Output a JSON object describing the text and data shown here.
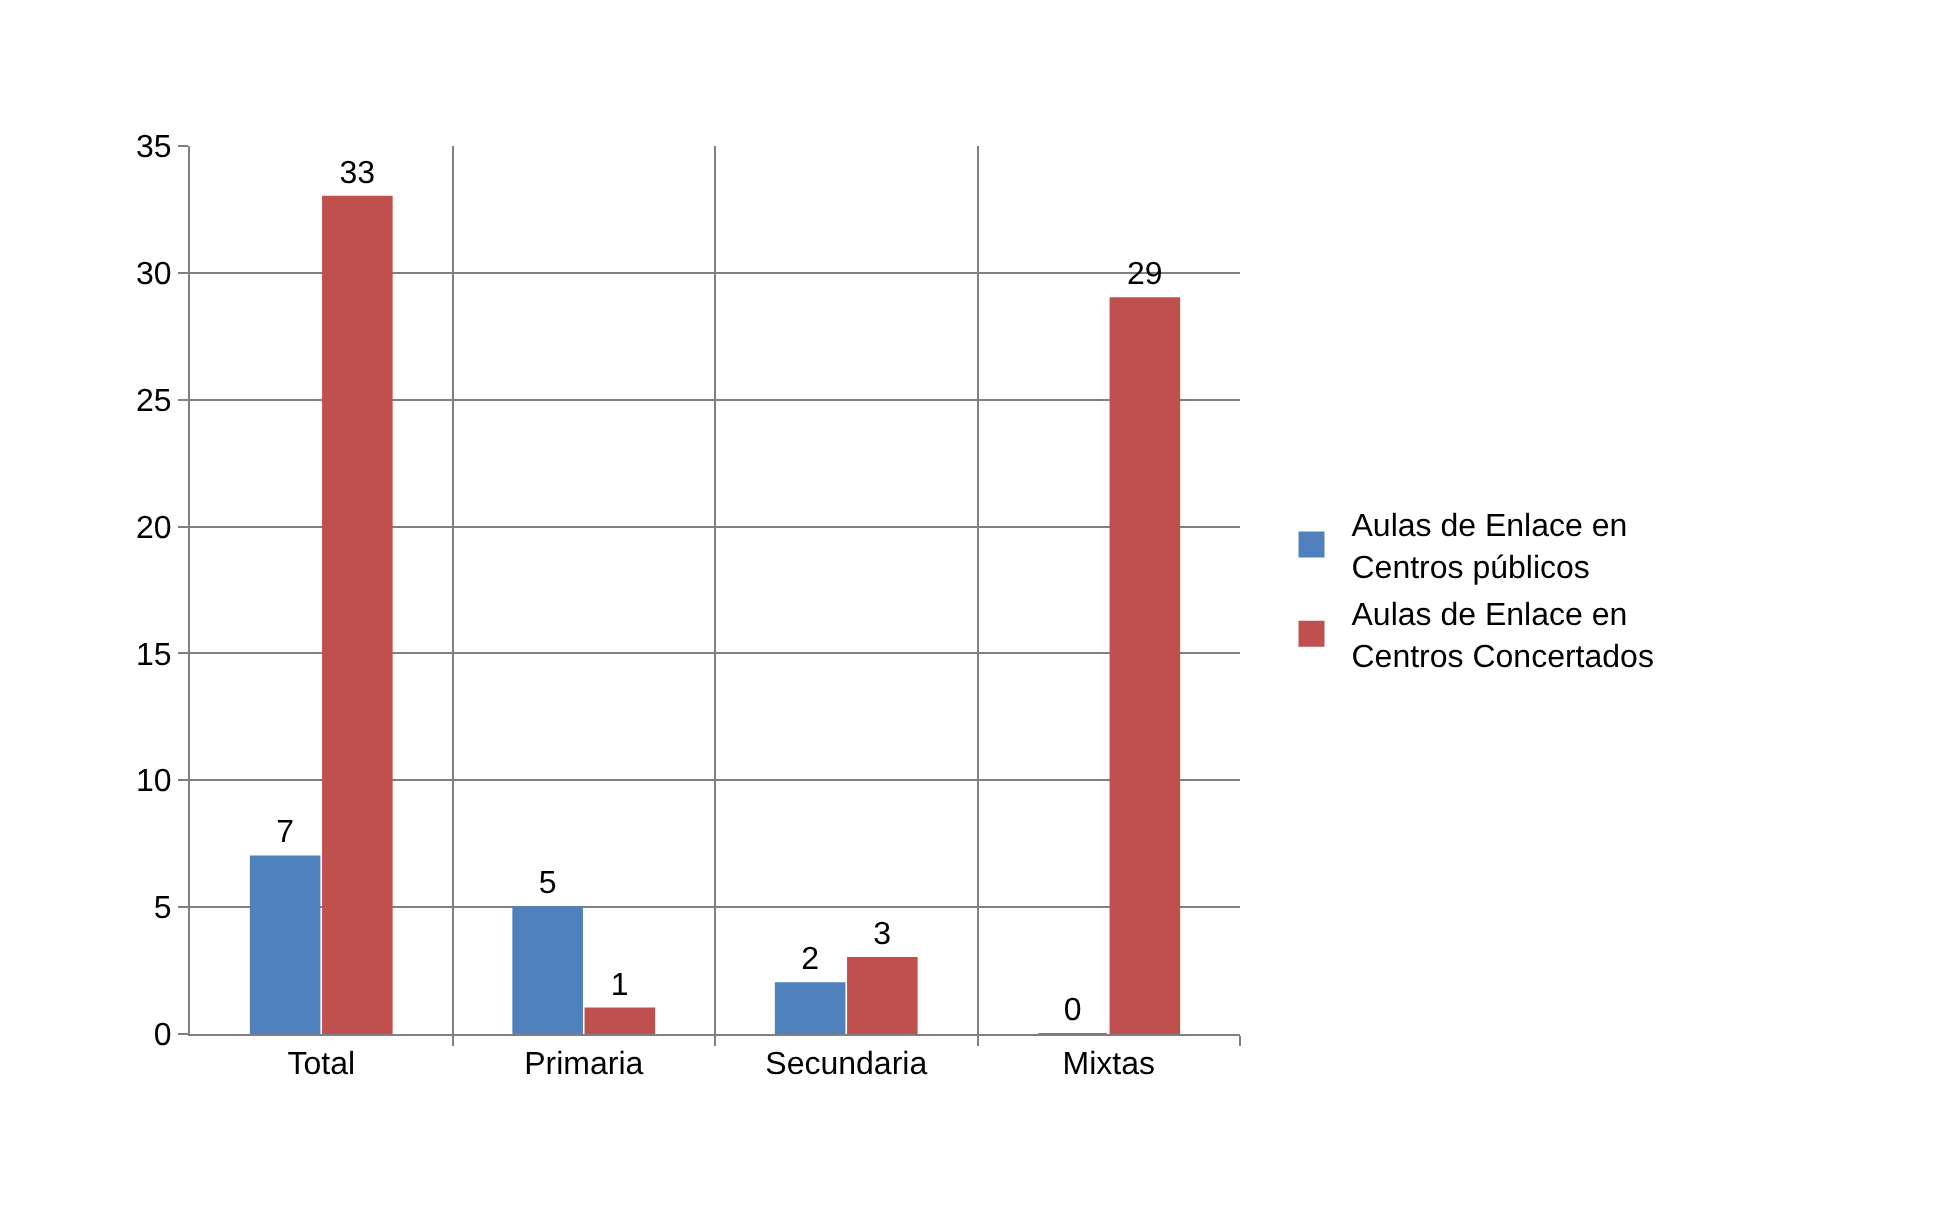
{
  "chart_data": {
    "type": "bar",
    "categories": [
      "Total",
      "Primaria",
      "Secundaria",
      "Mixtas"
    ],
    "series": [
      {
        "name": "Aulas de Enlace en Centros públicos",
        "color": "#4f81bd",
        "values": [
          7,
          5,
          2,
          0
        ]
      },
      {
        "name": "Aulas de Enlace en Centros Concertados",
        "color": "#c0504d",
        "values": [
          33,
          1,
          3,
          29
        ]
      }
    ],
    "ylim": [
      0,
      35
    ],
    "yticks": [
      0,
      5,
      10,
      15,
      20,
      25,
      30,
      35
    ],
    "grid": true,
    "legend": "right",
    "data_labels": true
  }
}
